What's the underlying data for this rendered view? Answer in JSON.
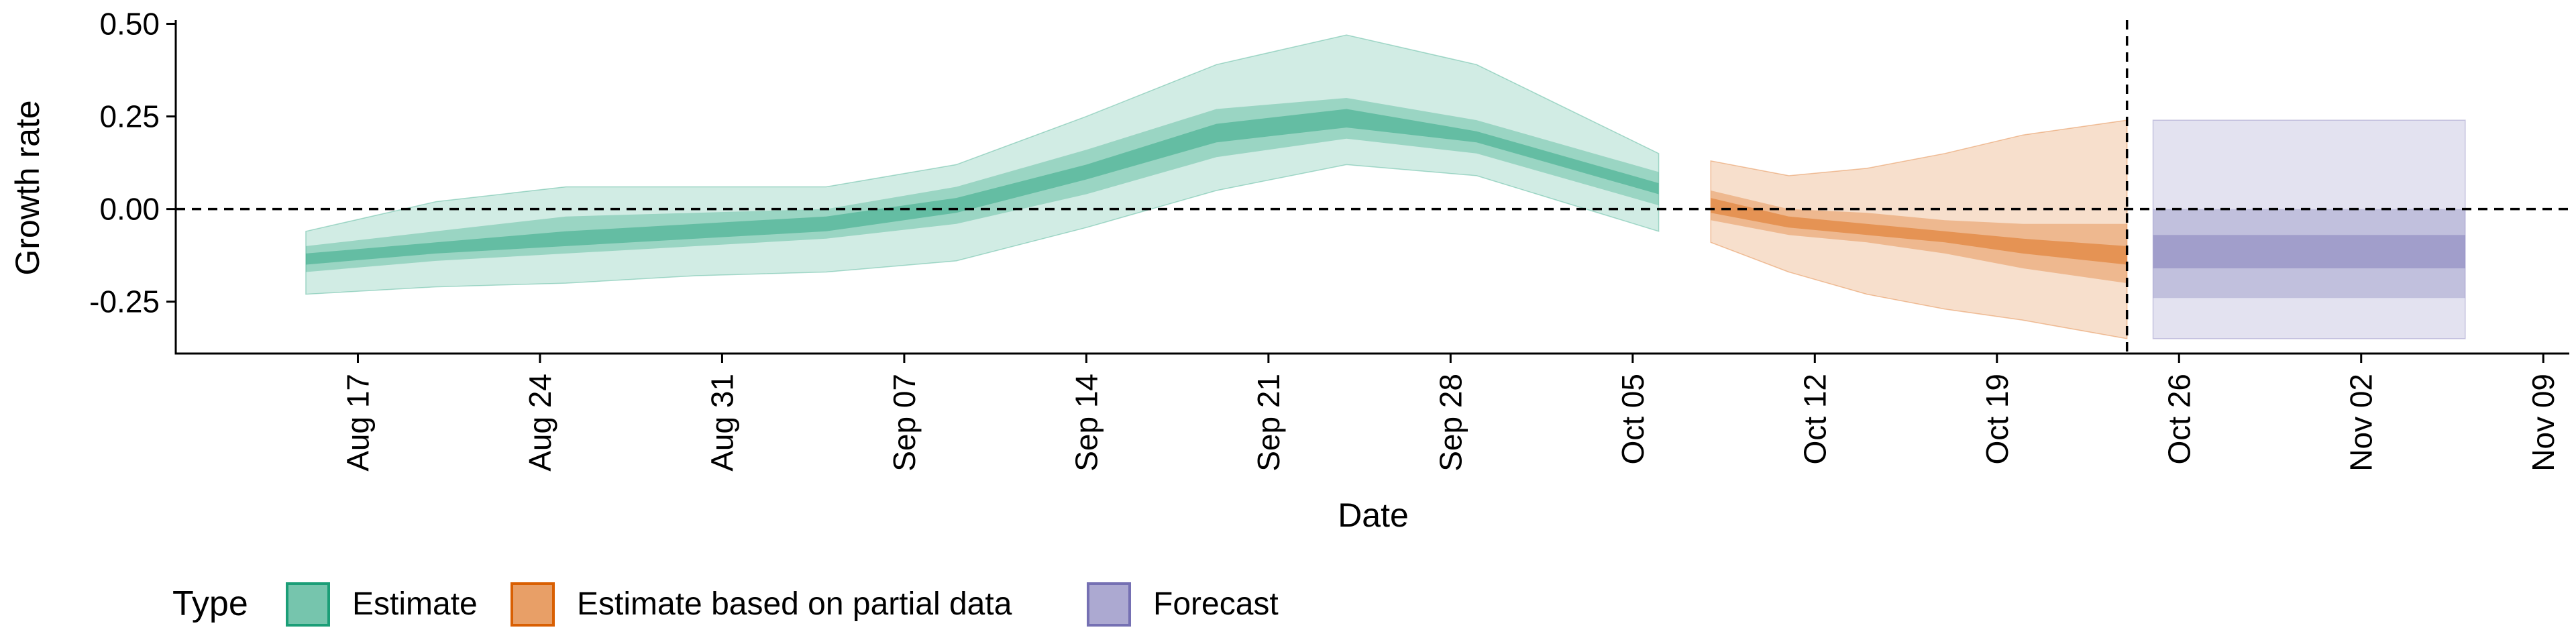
{
  "chart_data": {
    "type": "area",
    "xlabel": "Date",
    "ylabel": "Growth rate",
    "x_type": "date",
    "xlim": [
      "2020-08-10",
      "2020-11-10"
    ],
    "ylim": [
      -0.39,
      0.51
    ],
    "y_ticks": [
      -0.25,
      0.0,
      0.25,
      0.5
    ],
    "y_tick_labels": [
      "-0.25",
      "0.00",
      "0.25",
      "0.50"
    ],
    "x_ticks": [
      "2020-08-17",
      "2020-08-24",
      "2020-08-31",
      "2020-09-07",
      "2020-09-14",
      "2020-09-21",
      "2020-09-28",
      "2020-10-05",
      "2020-10-12",
      "2020-10-19",
      "2020-10-26",
      "2020-11-02",
      "2020-11-09"
    ],
    "x_tick_labels": [
      "Aug 17",
      "Aug 24",
      "Aug 31",
      "Sep 07",
      "Sep 14",
      "Sep 21",
      "Sep 28",
      "Oct 05",
      "Oct 12",
      "Oct 19",
      "Oct 26",
      "Nov 02",
      "Nov 09"
    ],
    "grid": false,
    "reference_lines": {
      "horizontal_y": 0.0,
      "vertical_x": "2020-10-24"
    },
    "legend": {
      "position": "bottom",
      "title": "Type",
      "items": [
        {
          "label": "Estimate",
          "color": "#1b9e77"
        },
        {
          "label": "Estimate based on partial data",
          "color": "#d95f02"
        },
        {
          "label": "Forecast",
          "color": "#7570b3"
        }
      ]
    },
    "series": [
      {
        "name": "Estimate",
        "color": "#1b9e77",
        "x": [
          "2020-08-15",
          "2020-08-20",
          "2020-08-25",
          "2020-08-30",
          "2020-09-04",
          "2020-09-09",
          "2020-09-14",
          "2020-09-19",
          "2020-09-24",
          "2020-09-29",
          "2020-10-06"
        ],
        "median": [
          -0.14,
          -0.11,
          -0.08,
          -0.06,
          -0.04,
          0.01,
          0.1,
          0.2,
          0.24,
          0.19,
          0.05
        ],
        "lower_90": [
          -0.23,
          -0.21,
          -0.2,
          -0.18,
          -0.17,
          -0.14,
          -0.05,
          0.05,
          0.12,
          0.09,
          -0.06
        ],
        "upper_90": [
          -0.06,
          0.02,
          0.06,
          0.06,
          0.06,
          0.12,
          0.25,
          0.39,
          0.47,
          0.39,
          0.15
        ],
        "lower_50": [
          -0.17,
          -0.14,
          -0.12,
          -0.1,
          -0.08,
          -0.04,
          0.04,
          0.14,
          0.19,
          0.15,
          0.01
        ],
        "upper_50": [
          -0.1,
          -0.06,
          -0.02,
          -0.01,
          0.0,
          0.06,
          0.16,
          0.27,
          0.3,
          0.24,
          0.1
        ],
        "lower_20": [
          -0.15,
          -0.12,
          -0.1,
          -0.08,
          -0.06,
          -0.01,
          0.08,
          0.18,
          0.22,
          0.18,
          0.04
        ],
        "upper_20": [
          -0.12,
          -0.09,
          -0.06,
          -0.04,
          -0.02,
          0.03,
          0.12,
          0.23,
          0.27,
          0.21,
          0.07
        ]
      },
      {
        "name": "Estimate based on partial data",
        "color": "#d95f02",
        "x": [
          "2020-10-08",
          "2020-10-11",
          "2020-10-14",
          "2020-10-17",
          "2020-10-20",
          "2020-10-24"
        ],
        "median": [
          0.01,
          -0.04,
          -0.06,
          -0.08,
          -0.1,
          -0.13
        ],
        "lower_90": [
          -0.09,
          -0.17,
          -0.23,
          -0.27,
          -0.3,
          -0.35
        ],
        "upper_90": [
          0.13,
          0.09,
          0.11,
          0.15,
          0.2,
          0.24
        ],
        "lower_50": [
          -0.03,
          -0.07,
          -0.09,
          -0.12,
          -0.16,
          -0.2
        ],
        "upper_50": [
          0.05,
          0.0,
          -0.01,
          -0.03,
          -0.04,
          -0.04
        ],
        "lower_20": [
          -0.01,
          -0.05,
          -0.07,
          -0.09,
          -0.12,
          -0.15
        ],
        "upper_20": [
          0.03,
          -0.02,
          -0.04,
          -0.06,
          -0.08,
          -0.1
        ]
      },
      {
        "name": "Forecast",
        "color": "#7570b3",
        "x": [
          "2020-10-25",
          "2020-11-06"
        ],
        "lower_90": [
          -0.35,
          -0.35
        ],
        "upper_90": [
          0.24,
          0.24
        ],
        "lower_50": [
          -0.24,
          -0.24
        ],
        "upper_50": [
          0.0,
          0.0
        ],
        "lower_20": [
          -0.16,
          -0.16
        ],
        "upper_20": [
          -0.07,
          -0.07
        ]
      }
    ]
  }
}
